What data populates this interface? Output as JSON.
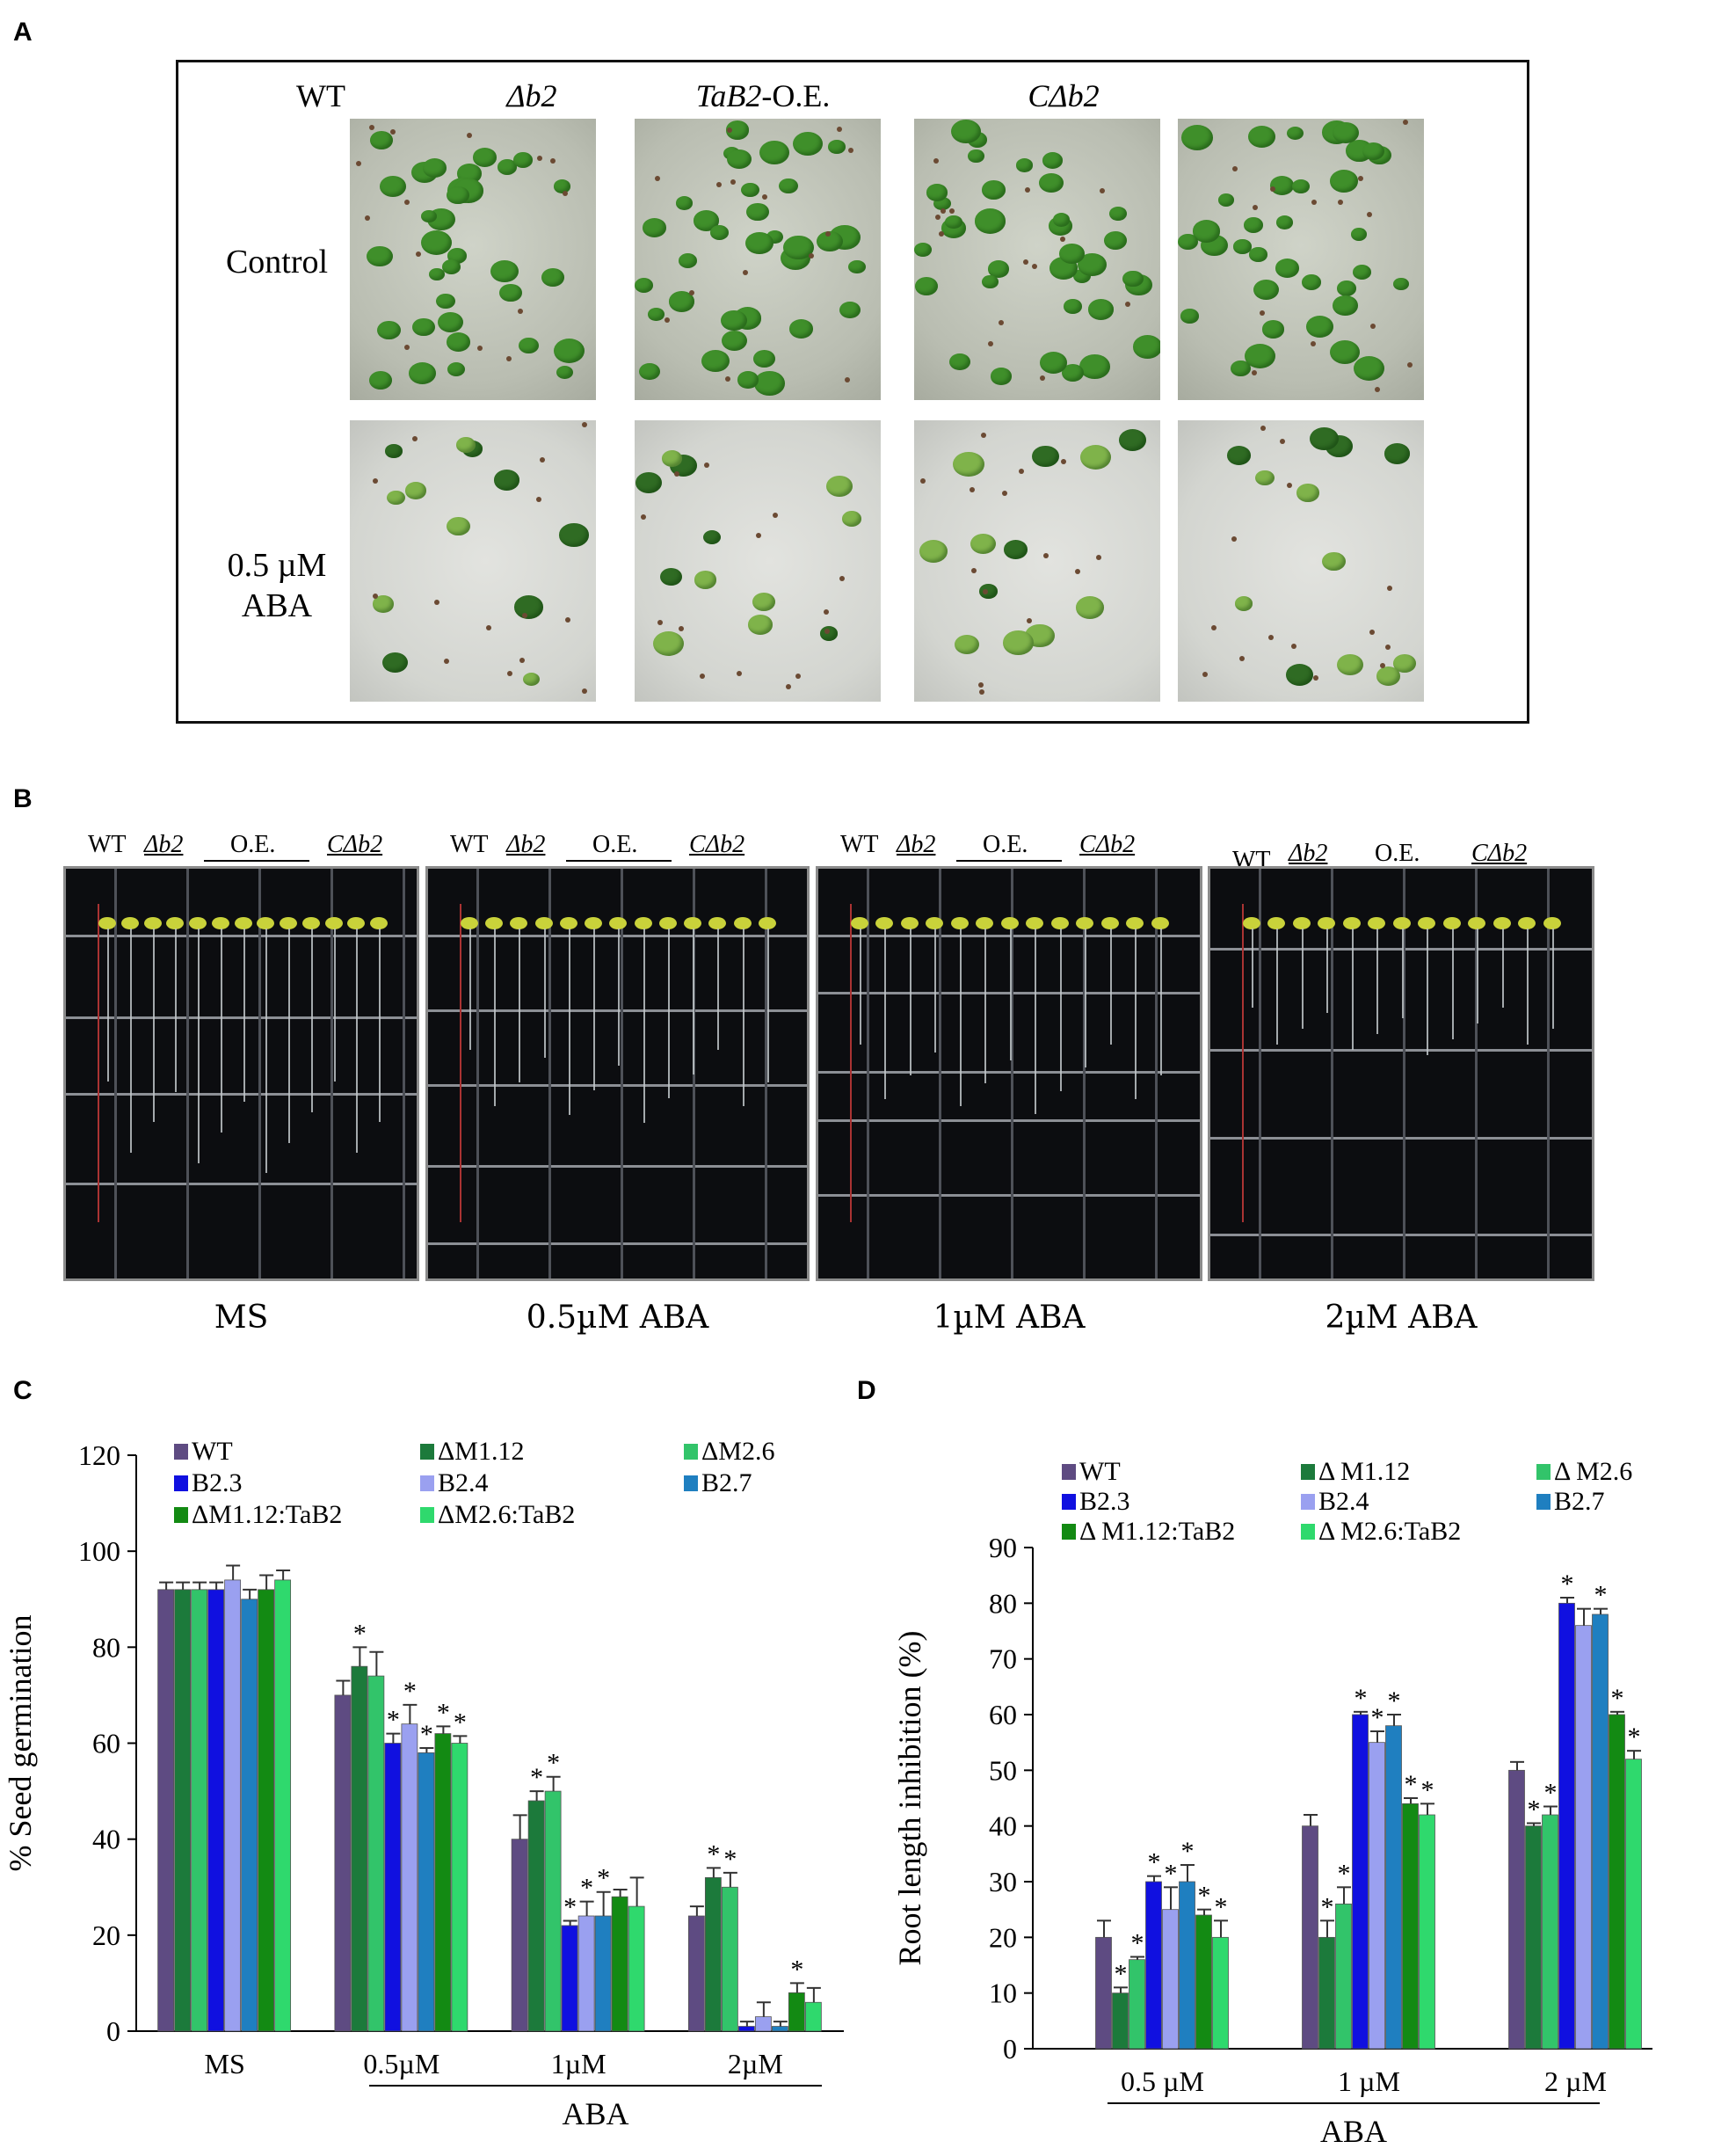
{
  "panels": {
    "a": {
      "letter": "A"
    },
    "b": {
      "letter": "B"
    },
    "c": {
      "letter": "C"
    },
    "d": {
      "letter": "D"
    }
  },
  "panel_a": {
    "columns": [
      "WT",
      "Δb2",
      "TaB2",
      "-O.E.",
      "CΔb2"
    ],
    "rows": [
      "Control",
      "0.5 µM",
      "ABA"
    ]
  },
  "panel_b": {
    "group_headers": [
      "WT",
      "Δb2",
      "O.E.",
      "CΔb2"
    ],
    "captions": [
      "MS",
      "0.5µM ABA",
      "1µM ABA",
      "2µM ABA"
    ]
  },
  "chart_data": [
    {
      "panel": "C",
      "type": "bar",
      "ylabel": "% Seed germination",
      "xlabel": "ABA",
      "ylim": [
        0,
        120
      ],
      "yticks": [
        0,
        20,
        40,
        60,
        80,
        100,
        120
      ],
      "categories": [
        "MS",
        "0.5µM",
        "1µM",
        "2µM"
      ],
      "legend_labels": [
        "WT",
        "ΔM1.12",
        "ΔM2.6",
        "B2.3",
        "B2.4",
        "B2.7",
        "ΔM1.12:TaB2",
        "ΔM2.6:TaB2"
      ],
      "series": [
        {
          "name": "WT",
          "color": "#5e4b82",
          "values": [
            92,
            70,
            40,
            24
          ],
          "errors": [
            1.5,
            3,
            5,
            2
          ],
          "sig": [
            false,
            false,
            false,
            false
          ]
        },
        {
          "name": "ΔM1.12",
          "color": "#1c7a3b",
          "values": [
            92,
            76,
            48,
            32
          ],
          "errors": [
            1.5,
            4,
            2,
            2
          ],
          "sig": [
            false,
            true,
            true,
            true
          ]
        },
        {
          "name": "ΔM2.6",
          "color": "#32c46a",
          "values": [
            92,
            74,
            50,
            30
          ],
          "errors": [
            1.5,
            5,
            3,
            3
          ],
          "sig": [
            false,
            false,
            true,
            true
          ]
        },
        {
          "name": "B2.3",
          "color": "#1010e0",
          "values": [
            92,
            60,
            22,
            1
          ],
          "errors": [
            1.5,
            2,
            1,
            1
          ],
          "sig": [
            false,
            true,
            true,
            false
          ]
        },
        {
          "name": "B2.4",
          "color": "#9aa0f0",
          "values": [
            94,
            64,
            24,
            3
          ],
          "errors": [
            3,
            4,
            3,
            3
          ],
          "sig": [
            false,
            true,
            true,
            false
          ]
        },
        {
          "name": "B2.7",
          "color": "#1f7fc0",
          "values": [
            90,
            58,
            24,
            1
          ],
          "errors": [
            2,
            1,
            5,
            1
          ],
          "sig": [
            false,
            true,
            true,
            false
          ]
        },
        {
          "name": "ΔM1.12:TaB2",
          "color": "#138a13",
          "values": [
            92,
            62,
            28,
            8
          ],
          "errors": [
            3,
            1.5,
            1.5,
            2
          ],
          "sig": [
            false,
            true,
            false,
            true
          ]
        },
        {
          "name": "ΔM2.6:TaB2",
          "color": "#2fd96d",
          "values": [
            94,
            60,
            26,
            6
          ],
          "errors": [
            2,
            1.5,
            6,
            3
          ],
          "sig": [
            false,
            true,
            false,
            false
          ]
        }
      ]
    },
    {
      "panel": "D",
      "type": "bar",
      "ylabel": "Root length inhibition (%)",
      "xlabel": "ABA",
      "ylim": [
        0,
        90
      ],
      "yticks": [
        0,
        10,
        20,
        30,
        40,
        50,
        60,
        70,
        80,
        90
      ],
      "categories": [
        "0.5 µM",
        "1 µM",
        "2 µM"
      ],
      "legend_labels": [
        "WT",
        "Δ M1.12",
        "Δ M2.6",
        "B2.3",
        "B2.4",
        "B2.7",
        "Δ M1.12:TaB2",
        "Δ M2.6:TaB2"
      ],
      "series": [
        {
          "name": "WT",
          "color": "#5e4b82",
          "values": [
            20,
            40,
            50
          ],
          "errors": [
            3,
            2,
            1.5
          ],
          "sig": [
            false,
            false,
            false
          ]
        },
        {
          "name": "Δ M1.12",
          "color": "#1c7a3b",
          "values": [
            10,
            20,
            40
          ],
          "errors": [
            1,
            3,
            0.5
          ],
          "sig": [
            true,
            true,
            true
          ]
        },
        {
          "name": "Δ M2.6",
          "color": "#32c46a",
          "values": [
            16,
            26,
            42
          ],
          "errors": [
            0.5,
            3,
            1.5
          ],
          "sig": [
            true,
            true,
            true
          ]
        },
        {
          "name": "B2.3",
          "color": "#1010e0",
          "values": [
            30,
            60,
            80
          ],
          "errors": [
            1,
            0.5,
            1
          ],
          "sig": [
            true,
            true,
            true
          ]
        },
        {
          "name": "B2.4",
          "color": "#9aa0f0",
          "values": [
            25,
            55,
            76
          ],
          "errors": [
            4,
            2,
            3
          ],
          "sig": [
            true,
            true,
            false
          ]
        },
        {
          "name": "B2.7",
          "color": "#1f7fc0",
          "values": [
            30,
            58,
            78
          ],
          "errors": [
            3,
            2,
            1
          ],
          "sig": [
            true,
            true,
            true
          ]
        },
        {
          "name": "Δ M1.12:TaB2",
          "color": "#138a13",
          "values": [
            24,
            44,
            60
          ],
          "errors": [
            1,
            1,
            0.5
          ],
          "sig": [
            true,
            true,
            true
          ]
        },
        {
          "name": "Δ M2.6:TaB2",
          "color": "#2fd96d",
          "values": [
            20,
            42,
            52
          ],
          "errors": [
            3,
            2,
            1.5
          ],
          "sig": [
            true,
            true,
            true
          ]
        }
      ]
    }
  ]
}
